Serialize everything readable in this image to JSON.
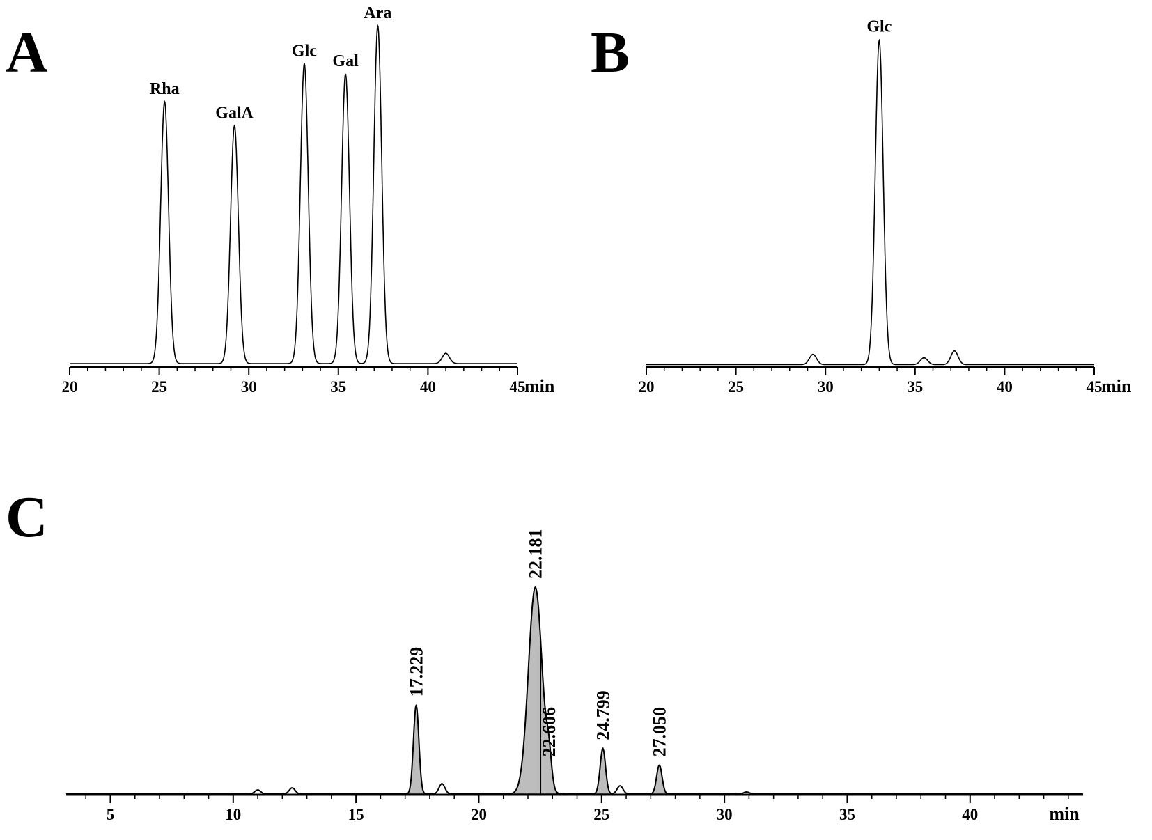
{
  "chart_data": [
    {
      "panel": "A",
      "type": "line",
      "xlabel": "min",
      "xlim": [
        20,
        45
      ],
      "xticks": [
        20,
        25,
        30,
        35,
        40,
        45
      ],
      "ylim": [
        0,
        1.0
      ],
      "grid": false,
      "baseline": 0.02,
      "peaks": [
        {
          "label": "Rha",
          "x": 25.3,
          "y": 0.76
        },
        {
          "label": "GalA",
          "x": 29.2,
          "y": 0.69
        },
        {
          "label": "Glc",
          "x": 33.1,
          "y": 0.87
        },
        {
          "label": "Gal",
          "x": 35.4,
          "y": 0.84
        },
        {
          "label": "Ara",
          "x": 37.2,
          "y": 0.98
        },
        {
          "label": "",
          "x": 41.0,
          "y": 0.03
        }
      ]
    },
    {
      "panel": "B",
      "type": "line",
      "xlabel": "min",
      "xlim": [
        20,
        45
      ],
      "xticks": [
        20,
        25,
        30,
        35,
        40,
        45
      ],
      "ylim": [
        0,
        1.0
      ],
      "grid": false,
      "baseline": 0.01,
      "peaks": [
        {
          "label": "",
          "x": 29.3,
          "y": 0.03
        },
        {
          "label": "Glc",
          "x": 33.0,
          "y": 0.94
        },
        {
          "label": "",
          "x": 35.5,
          "y": 0.02
        },
        {
          "label": "",
          "x": 37.2,
          "y": 0.04
        }
      ]
    },
    {
      "panel": "C",
      "type": "area",
      "xlabel": "min",
      "xlim": [
        3.2,
        44.6
      ],
      "xticks": [
        5,
        10,
        15,
        20,
        25,
        30,
        35,
        40
      ],
      "ylim": [
        0,
        1.0
      ],
      "grid": false,
      "peaks": [
        {
          "label": "17.229",
          "x": 17.45,
          "y": 0.43,
          "filled": true
        },
        {
          "label": "22.181",
          "x": 22.3,
          "y": 1.0,
          "filled": true
        },
        {
          "label": "22.606",
          "x": 22.85,
          "y": 0.14,
          "filled": true
        },
        {
          "label": "24.799",
          "x": 25.05,
          "y": 0.22,
          "filled": true
        },
        {
          "label": "27.050",
          "x": 27.35,
          "y": 0.14,
          "filled": true
        },
        {
          "label": "",
          "x": 18.5,
          "y": 0.05,
          "filled": false
        },
        {
          "label": "",
          "x": 25.75,
          "y": 0.04,
          "filled": false
        },
        {
          "label": "",
          "x": 11.0,
          "y": 0.02,
          "filled": false
        },
        {
          "label": "",
          "x": 12.4,
          "y": 0.03,
          "filled": false
        },
        {
          "label": "",
          "x": 30.9,
          "y": 0.01,
          "filled": false
        }
      ]
    }
  ]
}
